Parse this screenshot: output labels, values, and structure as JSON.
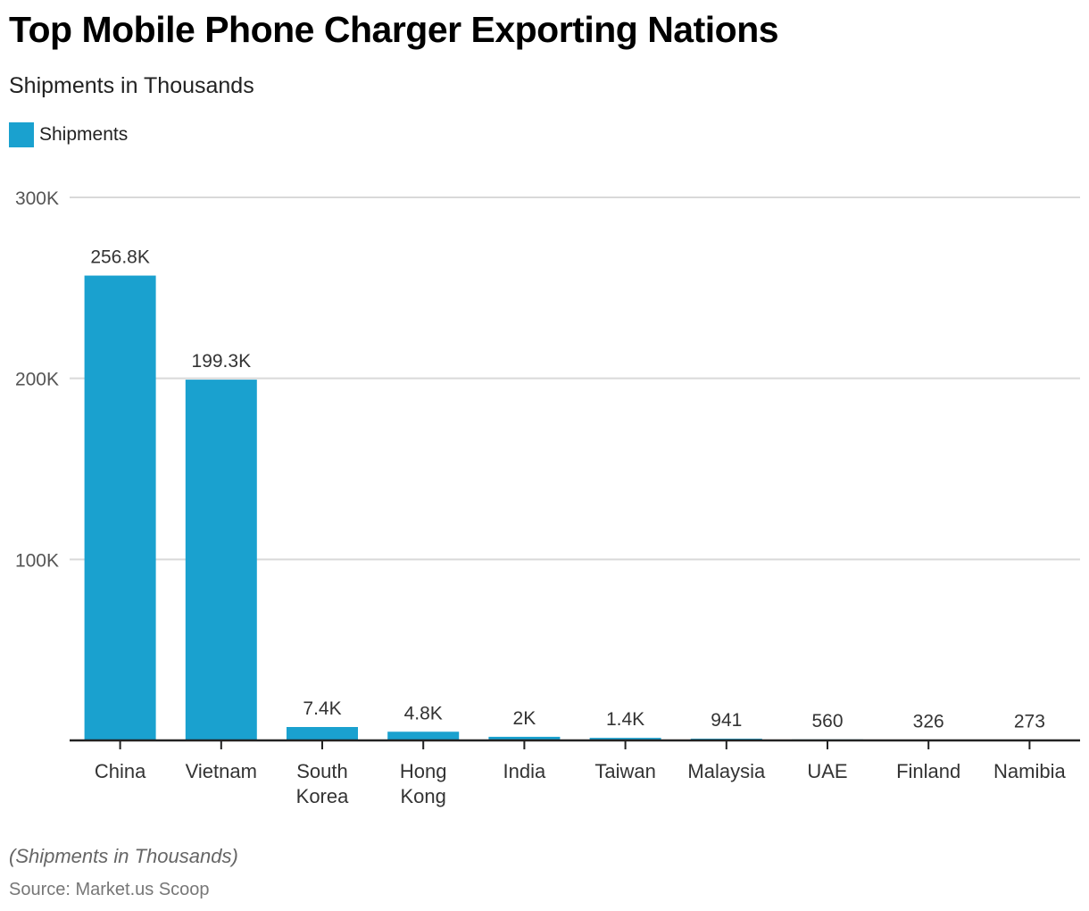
{
  "header": {
    "title": "Top Mobile Phone Charger Exporting Nations",
    "subtitle": "Shipments in Thousands"
  },
  "legend": {
    "items": [
      {
        "label": "Shipments",
        "color": "#1aa1cf"
      }
    ]
  },
  "footer": {
    "note": "(Shipments in Thousands)",
    "source": "Source: Market.us Scoop"
  },
  "chart_data": {
    "type": "bar",
    "title": "Top Mobile Phone Charger Exporting Nations",
    "subtitle": "Shipments in Thousands",
    "xlabel": "",
    "ylabel": "",
    "categories": [
      [
        "China"
      ],
      [
        "Vietnam"
      ],
      [
        "South",
        "Korea"
      ],
      [
        "Hong",
        "Kong"
      ],
      [
        "India"
      ],
      [
        "Taiwan"
      ],
      [
        "Malaysia"
      ],
      [
        "UAE"
      ],
      [
        "Finland"
      ],
      [
        "Namibia"
      ]
    ],
    "series": [
      {
        "name": "Shipments",
        "color": "#1aa1cf",
        "values": [
          256800,
          199300,
          7400,
          4800,
          2000,
          1400,
          941,
          560,
          326,
          273
        ],
        "labels": [
          "256.8K",
          "199.3K",
          "7.4K",
          "4.8K",
          "2K",
          "1.4K",
          "941",
          "560",
          "326",
          "273"
        ]
      }
    ],
    "ylim": [
      0,
      300000
    ],
    "yticks": [
      {
        "value": 100000,
        "label": "100K"
      },
      {
        "value": 200000,
        "label": "200K"
      },
      {
        "value": 300000,
        "label": "300K"
      }
    ],
    "grid": true,
    "legend_position": "top-left"
  }
}
